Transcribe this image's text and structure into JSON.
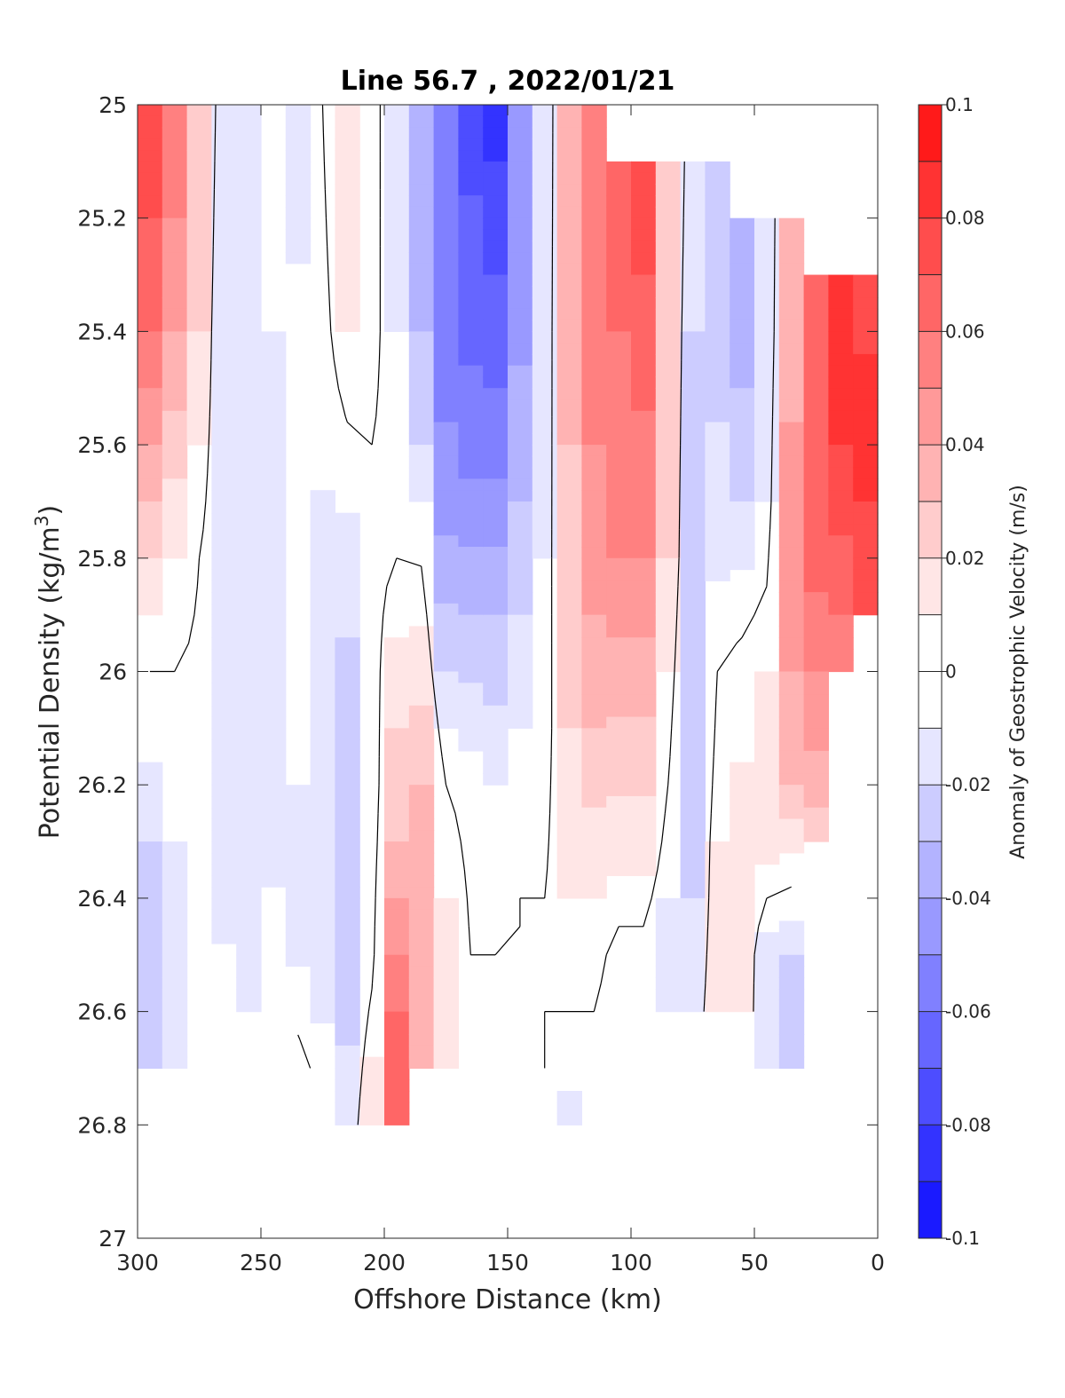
{
  "chart_data": {
    "type": "heatmap",
    "subtype": "filled-contour",
    "title": "Line 56.7 , 2022/01/21",
    "xlabel": "Offshore Distance (km)",
    "ylabel_main": "Potential Density (kg/m",
    "ylabel_sup": "3",
    "ylabel_close": ")",
    "xlim": [
      300,
      0
    ],
    "ylim": [
      25,
      27
    ],
    "y_reversed": true,
    "x_ticks": [
      "300",
      "250",
      "200",
      "150",
      "100",
      "50",
      "0"
    ],
    "x_tick_values": [
      300,
      250,
      200,
      150,
      100,
      50,
      0
    ],
    "y_ticks": [
      "25",
      "25.2",
      "25.4",
      "25.6",
      "25.8",
      "26",
      "26.2",
      "26.4",
      "26.6",
      "26.8",
      "27"
    ],
    "y_tick_values": [
      25,
      25.2,
      25.4,
      25.6,
      25.8,
      26,
      26.2,
      26.4,
      26.6,
      26.8,
      27
    ],
    "colorbar": {
      "label": "Anomaly of Geostrophic Velocity (m/s)",
      "range": [
        -0.1,
        0.1
      ],
      "tick_labels": [
        "0.1",
        "0.08",
        "0.06",
        "0.04",
        "0.02",
        "0",
        "-0.02",
        "-0.04",
        "-0.06",
        "-0.08",
        "-0.1"
      ],
      "tick_values": [
        0.1,
        0.08,
        0.06,
        0.04,
        0.02,
        0,
        -0.02,
        -0.04,
        -0.06,
        -0.08,
        -0.1
      ],
      "colormap": "blue-white-red",
      "neg_color": "#0000ff",
      "zero_color": "#ffffff",
      "pos_color": "#ff0000"
    },
    "zero_contour": true,
    "x_columns": [
      295,
      285,
      275,
      265,
      255,
      245,
      235,
      225,
      215,
      205,
      195,
      185,
      175,
      165,
      155,
      145,
      135,
      125,
      115,
      105,
      95,
      85,
      75,
      65,
      55,
      45,
      35,
      25,
      15,
      5
    ],
    "y_top": [
      25,
      25,
      25,
      25,
      25,
      25,
      25,
      25,
      25,
      25,
      25,
      25,
      25,
      25,
      25,
      25,
      25,
      25,
      25,
      25.1,
      25.1,
      25.1,
      25.1,
      25.1,
      25.2,
      25.2,
      25.2,
      25.3,
      25.3,
      25.3
    ],
    "y_bottom": [
      26.7,
      26.7,
      26.7,
      26.6,
      26.6,
      26.6,
      26.7,
      26.7,
      26.8,
      26.8,
      26.8,
      26.7,
      26.7,
      26.7,
      26.7,
      26.7,
      26.7,
      26.8,
      26.7,
      26.7,
      26.7,
      26.6,
      26.6,
      26.6,
      26.6,
      26.7,
      26.7,
      26.3,
      26.0,
      25.9
    ],
    "velocity_profiles": [
      {
        "x": 295,
        "d": [
          25.0,
          25.4,
          25.8,
          26.0,
          26.3,
          26.6,
          26.7
        ],
        "v": [
          0.08,
          0.06,
          0.02,
          0.0,
          -0.02,
          -0.03,
          -0.02
        ]
      },
      {
        "x": 285,
        "d": [
          25.0,
          25.4,
          25.8,
          26.0,
          26.3,
          26.6,
          26.7
        ],
        "v": [
          0.06,
          0.04,
          0.01,
          0.0,
          -0.01,
          -0.02,
          -0.01
        ]
      },
      {
        "x": 275,
        "d": [
          25.0,
          25.4,
          25.8,
          26.2,
          26.5,
          26.7
        ],
        "v": [
          0.03,
          0.02,
          0.0,
          -0.005,
          -0.005,
          0.0
        ]
      },
      {
        "x": 265,
        "d": [
          25.0,
          25.4,
          25.8,
          26.2,
          26.6
        ],
        "v": [
          -0.015,
          -0.02,
          -0.012,
          -0.015,
          -0.008
        ]
      },
      {
        "x": 255,
        "d": [
          25.0,
          25.4,
          25.8,
          26.2,
          26.6
        ],
        "v": [
          -0.01,
          -0.012,
          -0.01,
          -0.015,
          -0.012
        ]
      },
      {
        "x": 245,
        "d": [
          25.0,
          25.4,
          25.8,
          26.2,
          26.6
        ],
        "v": [
          -0.008,
          -0.01,
          -0.012,
          -0.014,
          -0.005
        ]
      },
      {
        "x": 235,
        "d": [
          25.0,
          25.4,
          25.8,
          26.2,
          26.5,
          26.7
        ],
        "v": [
          -0.015,
          -0.008,
          -0.008,
          -0.01,
          -0.012,
          0.005
        ]
      },
      {
        "x": 225,
        "d": [
          25.0,
          25.4,
          25.8,
          26.2,
          26.5,
          26.7
        ],
        "v": [
          0.0,
          -0.005,
          -0.012,
          -0.02,
          -0.018,
          -0.005
        ]
      },
      {
        "x": 215,
        "d": [
          25.0,
          25.4,
          25.8,
          26.2,
          26.5,
          26.8
        ],
        "v": [
          0.02,
          0.01,
          -0.015,
          -0.03,
          -0.025,
          -0.015
        ]
      },
      {
        "x": 205,
        "d": [
          25.0,
          25.4,
          25.8,
          26.2,
          26.5,
          26.8
        ],
        "v": [
          0.01,
          0.005,
          -0.005,
          -0.01,
          -0.005,
          0.02
        ]
      },
      {
        "x": 195,
        "d": [
          25.0,
          25.4,
          25.8,
          26.0,
          26.3,
          26.6,
          26.8
        ],
        "v": [
          -0.02,
          -0.01,
          0.0,
          0.015,
          0.03,
          0.06,
          0.06
        ]
      },
      {
        "x": 185,
        "d": [
          25.0,
          25.4,
          25.6,
          25.9,
          26.2,
          26.5,
          26.7
        ],
        "v": [
          -0.04,
          -0.03,
          -0.02,
          0.008,
          0.03,
          0.04,
          0.03
        ]
      },
      {
        "x": 175,
        "d": [
          25.0,
          25.4,
          25.7,
          26.0,
          26.2,
          26.4,
          26.7
        ],
        "v": [
          -0.06,
          -0.055,
          -0.045,
          -0.02,
          0.0,
          0.01,
          0.015
        ]
      },
      {
        "x": 165,
        "d": [
          25.0,
          25.3,
          25.6,
          25.9,
          26.2,
          26.5,
          26.7
        ],
        "v": [
          -0.075,
          -0.065,
          -0.055,
          -0.03,
          -0.005,
          0.0,
          0.0
        ]
      },
      {
        "x": 155,
        "d": [
          25.0,
          25.3,
          25.6,
          25.9,
          26.2,
          26.5,
          26.7
        ],
        "v": [
          -0.085,
          -0.07,
          -0.055,
          -0.03,
          -0.01,
          0.0,
          0.0
        ]
      },
      {
        "x": 145,
        "d": [
          25.0,
          25.3,
          25.6,
          25.9,
          26.1,
          26.4,
          26.7
        ],
        "v": [
          -0.05,
          -0.045,
          -0.035,
          -0.02,
          -0.01,
          0.0,
          0.0
        ]
      },
      {
        "x": 135,
        "d": [
          25.0,
          25.4,
          25.8,
          26.1,
          26.4,
          26.7
        ],
        "v": [
          -0.02,
          -0.015,
          -0.01,
          -0.008,
          0.0,
          0.0
        ]
      },
      {
        "x": 125,
        "d": [
          25.0,
          25.4,
          25.8,
          26.1,
          26.4,
          26.6,
          26.8
        ],
        "v": [
          0.04,
          0.035,
          0.025,
          0.02,
          0.01,
          0.0,
          -0.015
        ]
      },
      {
        "x": 115,
        "d": [
          25.0,
          25.4,
          25.8,
          26.1,
          26.3,
          26.6,
          26.7
        ],
        "v": [
          0.06,
          0.055,
          0.045,
          0.03,
          0.015,
          0.0,
          -0.01
        ]
      },
      {
        "x": 105,
        "d": [
          25.1,
          25.4,
          25.8,
          26.0,
          26.3,
          26.5,
          26.7
        ],
        "v": [
          0.07,
          0.06,
          0.05,
          0.035,
          0.015,
          -0.005,
          -0.01
        ]
      },
      {
        "x": 95,
        "d": [
          25.1,
          25.4,
          25.8,
          26.0,
          26.3,
          26.5,
          26.7
        ],
        "v": [
          0.08,
          0.065,
          0.05,
          0.035,
          0.015,
          -0.005,
          -0.01
        ]
      },
      {
        "x": 85,
        "d": [
          25.1,
          25.4,
          25.8,
          26.1,
          26.4,
          26.6
        ],
        "v": [
          0.03,
          0.025,
          0.02,
          0.005,
          -0.01,
          -0.01
        ]
      },
      {
        "x": 75,
        "d": [
          25.1,
          25.4,
          25.8,
          26.1,
          26.4,
          26.6
        ],
        "v": [
          -0.015,
          -0.02,
          -0.025,
          -0.03,
          -0.02,
          -0.01
        ]
      },
      {
        "x": 65,
        "d": [
          25.1,
          25.4,
          25.8,
          26.0,
          26.3,
          26.6
        ],
        "v": [
          -0.02,
          -0.025,
          -0.012,
          0.0,
          0.01,
          0.012
        ]
      },
      {
        "x": 55,
        "d": [
          25.2,
          25.4,
          25.7,
          26.0,
          26.3,
          26.6
        ],
        "v": [
          -0.04,
          -0.035,
          -0.02,
          0.005,
          0.015,
          0.015
        ]
      },
      {
        "x": 45,
        "d": [
          25.2,
          25.4,
          25.7,
          26.0,
          26.3,
          26.5,
          26.7
        ],
        "v": [
          -0.015,
          -0.015,
          -0.01,
          0.01,
          0.015,
          -0.015,
          -0.02
        ]
      },
      {
        "x": 35,
        "d": [
          25.2,
          25.4,
          25.7,
          26.0,
          26.2,
          26.5,
          26.7
        ],
        "v": [
          0.03,
          0.035,
          0.045,
          0.04,
          0.03,
          -0.02,
          -0.03
        ]
      },
      {
        "x": 25,
        "d": [
          25.3,
          25.5,
          25.8,
          26.0,
          26.2,
          26.3
        ],
        "v": [
          0.065,
          0.07,
          0.065,
          0.05,
          0.035,
          0.02
        ]
      },
      {
        "x": 15,
        "d": [
          25.3,
          25.5,
          25.7,
          25.9,
          26.0
        ],
        "v": [
          0.08,
          0.085,
          0.075,
          0.06,
          0.05
        ]
      },
      {
        "x": 5,
        "d": [
          25.3,
          25.5,
          25.7,
          25.9
        ],
        "v": [
          0.07,
          0.085,
          0.08,
          0.07
        ]
      }
    ]
  }
}
